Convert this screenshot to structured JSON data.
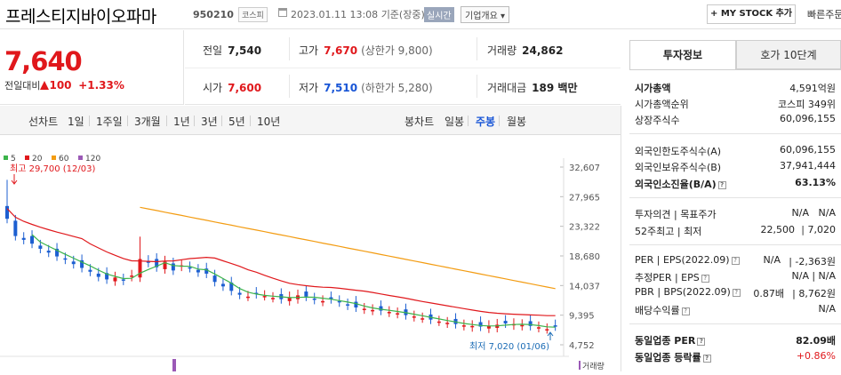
{
  "header": {
    "company_name": "프레스티지바이오파마",
    "code": "950210",
    "market": "코스피",
    "datetime": "2023.01.11 13:08",
    "basis": "기준(장중)",
    "realtime_badge": "실시간",
    "corp_overview": "기업개요 ▾",
    "my_stock_button": "+ MY STOCK 추가",
    "quick_order": "빠른주문"
  },
  "price": {
    "current": "7,640",
    "change_label": "전일대비",
    "change": "100",
    "change_pct": "+1.33%"
  },
  "stats": {
    "prev_close_label": "전일",
    "prev_close": "7,540",
    "high_label": "고가",
    "high": "7,670",
    "upper_limit": "(상한가 9,800)",
    "volume_label": "거래량",
    "volume": "24,862",
    "open_label": "시가",
    "open": "7,600",
    "low_label": "저가",
    "low": "7,510",
    "lower_limit": "(하한가 5,280)",
    "amount_label": "거래대금",
    "amount": "189 백만"
  },
  "line_tabs": {
    "label": "선차트",
    "items": [
      "1일",
      "1주일",
      "3개월",
      "1년",
      "3년",
      "5년",
      "10년"
    ]
  },
  "candle_tabs": {
    "label": "봉차트",
    "items": [
      "일봉",
      "주봉",
      "월봉"
    ],
    "active": "주봉"
  },
  "chart_data": {
    "type": "line",
    "legend": [
      {
        "name": "5",
        "color": "#3cb44b"
      },
      {
        "name": "20",
        "color": "#e0181c"
      },
      {
        "name": "60",
        "color": "#f39c12"
      },
      {
        "name": "120",
        "color": "#9b59b6"
      }
    ],
    "y_ticks": [
      "32,607",
      "27,965",
      "23,322",
      "18,680",
      "14,037",
      "9,395",
      "4,752"
    ],
    "ylim": [
      4752,
      32607
    ],
    "high_annotation": "최고 29,700 (12/03)",
    "low_annotation": "최저 7,020 (01/06)",
    "volume_label": "거래량",
    "series": [
      {
        "name": "20",
        "color": "#e0181c",
        "values": [
          24300,
          23600,
          22900,
          22000,
          21100,
          20200,
          19400,
          18800,
          18200,
          17700,
          17300,
          16900,
          16700,
          16500,
          16200,
          15900,
          15500,
          15100,
          14700,
          14300,
          13800,
          13400,
          13000,
          12700,
          12400,
          12200,
          12100,
          12000,
          11900,
          11800,
          11600,
          11400,
          11200,
          11000,
          10800,
          10500,
          10200,
          10000,
          9800,
          9600
        ]
      },
      {
        "name": "60",
        "color": "#f39c12",
        "values": [
          null,
          null,
          null,
          null,
          null,
          null,
          null,
          null,
          null,
          null,
          null,
          null,
          null,
          null,
          null,
          null,
          null,
          null,
          null,
          null,
          null,
          null,
          null,
          null,
          null,
          null,
          null,
          null,
          null,
          null,
          null,
          null,
          null,
          null,
          null,
          null,
          null,
          null,
          null,
          null
        ]
      },
      {
        "name": "5",
        "color": "#3cb44b",
        "values": [
          null,
          null,
          null,
          null,
          null,
          null,
          null,
          null,
          null,
          null,
          null,
          null,
          null,
          null,
          null,
          null,
          null,
          null,
          null,
          null,
          null,
          null,
          null,
          null,
          null,
          null,
          null,
          null,
          null,
          null,
          null,
          null,
          null,
          null,
          null,
          null,
          null,
          null,
          null,
          null
        ]
      }
    ]
  },
  "invest": {
    "tab_info": "투자정보",
    "tab_orderbook": "호가 10단계",
    "market_cap_label": "시가총액",
    "market_cap": "4,591억원",
    "cap_rank_label": "시가총액순위",
    "cap_rank": "코스피 349위",
    "shares_label": "상장주식수",
    "shares": "60,096,155",
    "foreign_limit_label": "외국인한도주식수(A)",
    "foreign_limit": "60,096,155",
    "foreign_hold_label": "외국인보유주식수(B)",
    "foreign_hold": "37,941,444",
    "foreign_ratio_label": "외국인소진율(B/A)",
    "foreign_ratio": "63.13%",
    "opinion_label": "투자의견",
    "target_label": "목표주가",
    "opinion": "N/A",
    "target": "N/A",
    "w52_label": "52주최고",
    "w52_low_label": "최저",
    "w52_high": "22,500",
    "w52_low": "7,020",
    "per_label": "PER",
    "eps_label": "EPS(2022.09)",
    "per": "N/A",
    "eps": "-2,363원",
    "eper_label": "추정PER",
    "eeps_label": "EPS",
    "eper": "N/A",
    "eeps": "N/A",
    "pbr_label": "PBR",
    "bps_label": "BPS(2022.09)",
    "pbr": "0.87배",
    "bps": "8,762원",
    "div_label": "배당수익률",
    "div": "N/A",
    "ind_per_label": "동일업종 PER",
    "ind_per": "82.09배",
    "ind_rate_label": "동일업종 등락률",
    "ind_rate": "+0.86%"
  }
}
